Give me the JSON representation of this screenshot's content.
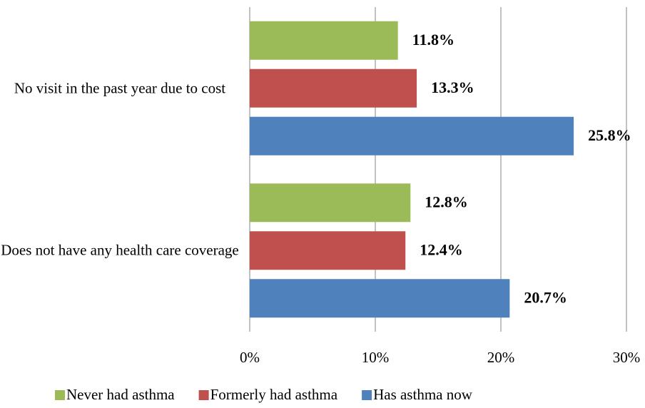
{
  "chart_data": {
    "type": "bar",
    "orientation": "horizontal",
    "categories": [
      "No visit in the past year due to cost",
      "Does not have any health care coverage"
    ],
    "series": [
      {
        "name": "Never had asthma",
        "color": "#9bbb59",
        "values": [
          11.8,
          12.8
        ],
        "value_labels": [
          "11.8%",
          "12.8%"
        ]
      },
      {
        "name": "Formerly had asthma",
        "color": "#c0504d",
        "values": [
          13.3,
          12.4
        ],
        "value_labels": [
          "13.3%",
          "12.4%"
        ]
      },
      {
        "name": "Has asthma now",
        "color": "#4f81bd",
        "values": [
          25.8,
          20.7
        ],
        "value_labels": [
          "25.8%",
          "20.7%"
        ]
      }
    ],
    "xlim": [
      0,
      30
    ],
    "xticks": [
      {
        "value": 0,
        "label": "0%"
      },
      {
        "value": 10,
        "label": "10%"
      },
      {
        "value": 20,
        "label": "20%"
      },
      {
        "value": 30,
        "label": "30%"
      }
    ],
    "grid": true,
    "legend": "bottom"
  }
}
